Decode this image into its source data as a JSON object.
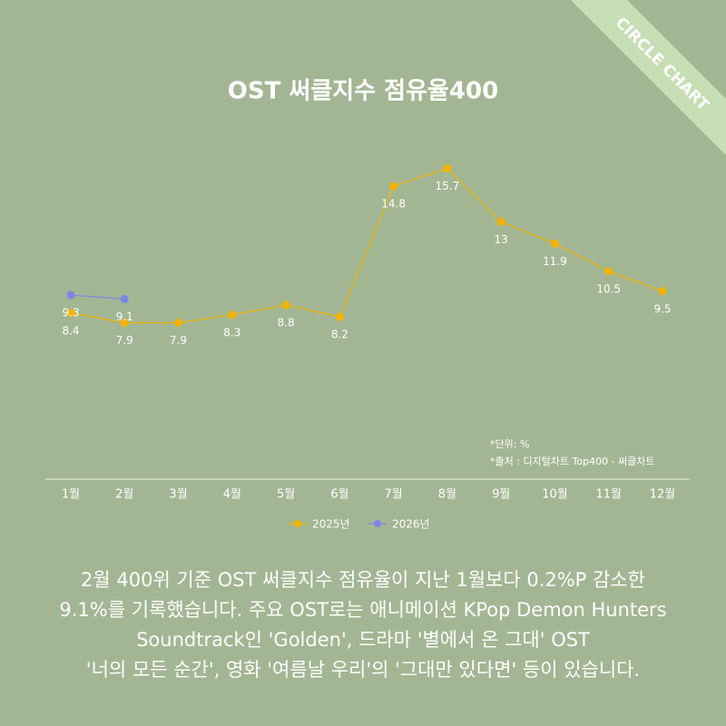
{
  "brand": "CIRCLE CHART",
  "chart_data": {
    "type": "line",
    "title": "OST 써클지수 점유율400",
    "categories": [
      "1월",
      "2월",
      "3월",
      "4월",
      "5월",
      "6월",
      "7월",
      "8월",
      "9월",
      "10월",
      "11월",
      "12월"
    ],
    "series": [
      {
        "name": "2025년",
        "color": "#f3b400",
        "values": [
          8.4,
          7.9,
          7.9,
          8.3,
          8.8,
          8.2,
          14.8,
          15.7,
          13,
          11.9,
          10.5,
          9.5
        ]
      },
      {
        "name": "2026년",
        "color": "#7c86e4",
        "values": [
          9.3,
          9.1,
          null,
          null,
          null,
          null,
          null,
          null,
          null,
          null,
          null,
          null
        ]
      }
    ],
    "ylim": [
      0,
      16
    ],
    "notes": [
      "*단위: %",
      "*출처 : 디지털차트 Top400 - 써클차트"
    ],
    "legend": "bottom"
  },
  "description": [
    "2월 400위 기준 OST 써클지수 점유율이 지난 1월보다 0.2%P 감소한",
    "9.1%를 기록했습니다. 주요 OST로는 애니메이션 KPop Demon Hunters",
    "Soundtrack인 'Golden', 드라마 '별에서 온 그대' OST",
    "'너의 모든 순간', 영화 '여름날 우리'의 '그대만 있다면' 등이 있습니다."
  ]
}
